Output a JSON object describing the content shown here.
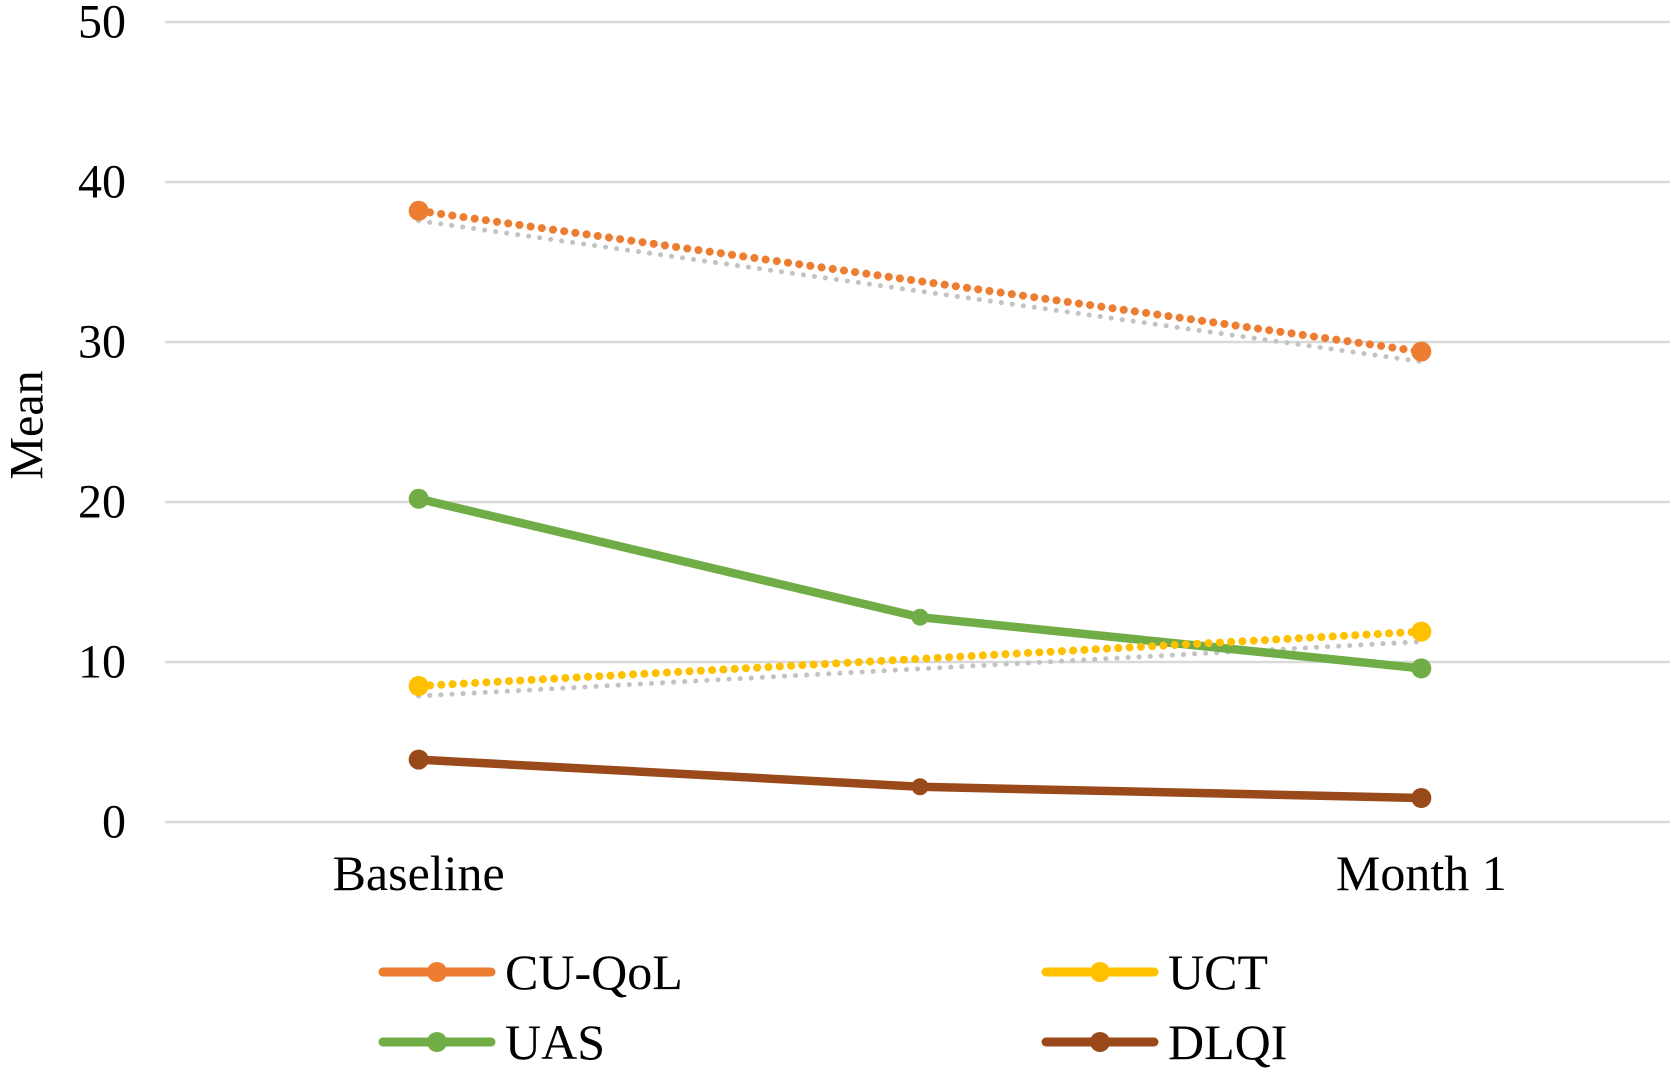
{
  "figure": {
    "background_color": "#FFFFFF",
    "text_color": "#000000"
  },
  "chart_data": {
    "type": "line",
    "title": "",
    "xlabel": "",
    "ylabel": "Mean",
    "categories": [
      "Baseline",
      "",
      "Month 1"
    ],
    "yticks": [
      0,
      10,
      20,
      30,
      40,
      50
    ],
    "ylim": [
      0,
      50
    ],
    "grid": true,
    "gridline_color": "#D9D9D9",
    "trendline_color": "#C3C3C3",
    "legend_position": "bottom-two-columns",
    "series": [
      {
        "name": "CU-QoL",
        "color": "#ED7D31",
        "line_style": "dotted",
        "category_index": [
          0,
          2
        ],
        "values": [
          38.2,
          29.4
        ],
        "has_gray_trendline": true
      },
      {
        "name": "UAS",
        "color": "#70AD47",
        "line_style": "solid",
        "category_index": [
          0,
          1,
          2
        ],
        "values": [
          20.2,
          12.8,
          9.6
        ],
        "has_gray_trendline": false
      },
      {
        "name": "UCT",
        "color": "#FFC000",
        "line_style": "dotted",
        "category_index": [
          0,
          2
        ],
        "values": [
          8.5,
          11.9
        ],
        "has_gray_trendline": true
      },
      {
        "name": "DLQI",
        "color": "#9A4A1A",
        "line_style": "solid",
        "category_index": [
          0,
          1,
          2
        ],
        "values": [
          3.9,
          2.2,
          1.5
        ],
        "has_gray_trendline": false
      }
    ]
  }
}
